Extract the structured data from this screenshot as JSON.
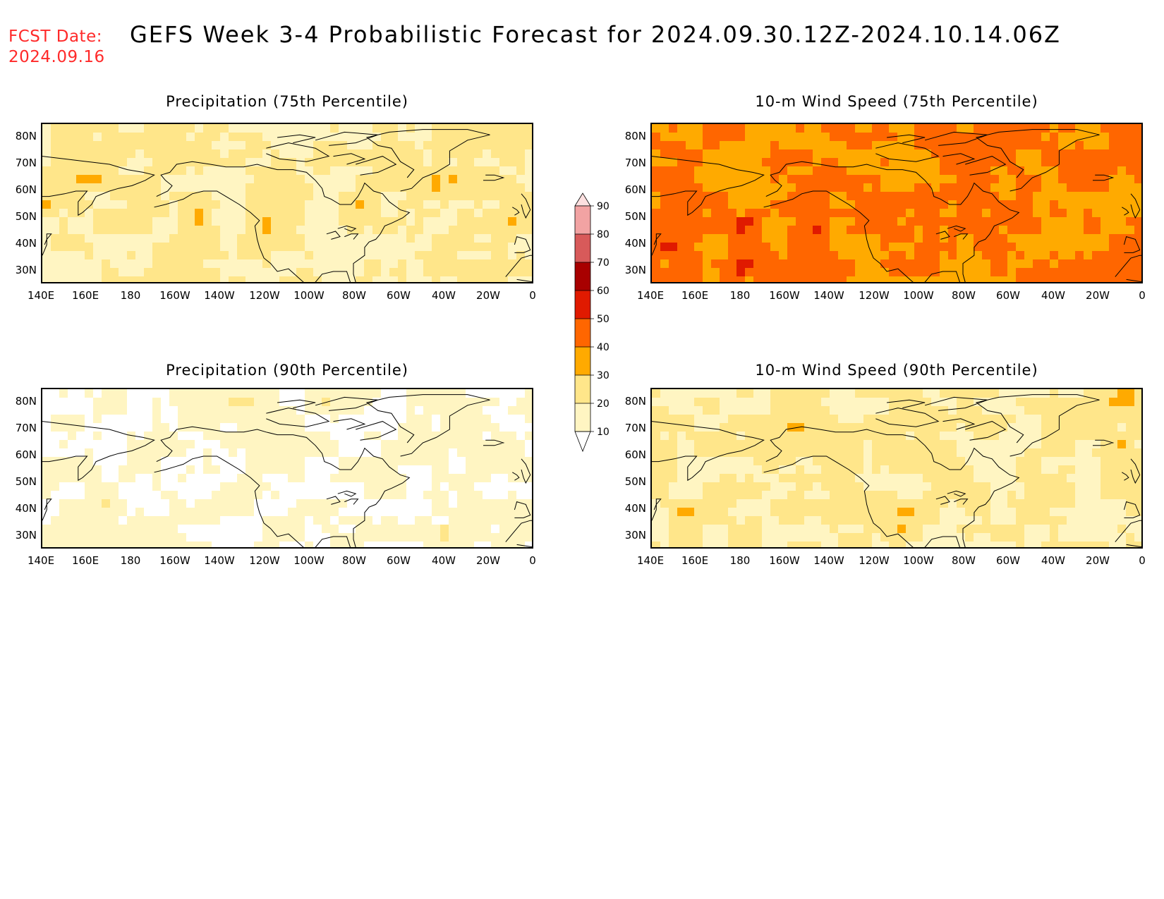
{
  "header": {
    "fcst_label": "FCST Date:",
    "fcst_date": "2024.09.16",
    "title": "GEFS Week 3-4 Probabilistic Forecast for 2024.09.30.12Z-2024.10.14.06Z"
  },
  "panels": [
    {
      "id": "precip75",
      "title": "Precipitation (75th Percentile)",
      "base_category": 20
    },
    {
      "id": "wind75",
      "title": "10-m Wind Speed (75th Percentile)",
      "base_category": 40
    },
    {
      "id": "precip90",
      "title": "Precipitation (90th Percentile)",
      "base_category": 10
    },
    {
      "id": "wind90",
      "title": "10-m Wind Speed (90th Percentile)",
      "base_category": 20
    }
  ],
  "axes": {
    "lat_ticks": [
      "80N",
      "70N",
      "60N",
      "50N",
      "40N",
      "30N"
    ],
    "lon_ticks": [
      "140E",
      "160E",
      "180",
      "160W",
      "140W",
      "120W",
      "100W",
      "80W",
      "60W",
      "40W",
      "20W",
      "0"
    ]
  },
  "colorbar": {
    "ticks": [
      "10",
      "20",
      "30",
      "40",
      "50",
      "60",
      "70",
      "80",
      "90"
    ],
    "colors": [
      "#ffffff",
      "#fff5c2",
      "#ffe68a",
      "#ffaa00",
      "#ff6600",
      "#e01a00",
      "#a80000",
      "#d85a5a",
      "#f2a3a3",
      "#fde0e0"
    ]
  }
}
